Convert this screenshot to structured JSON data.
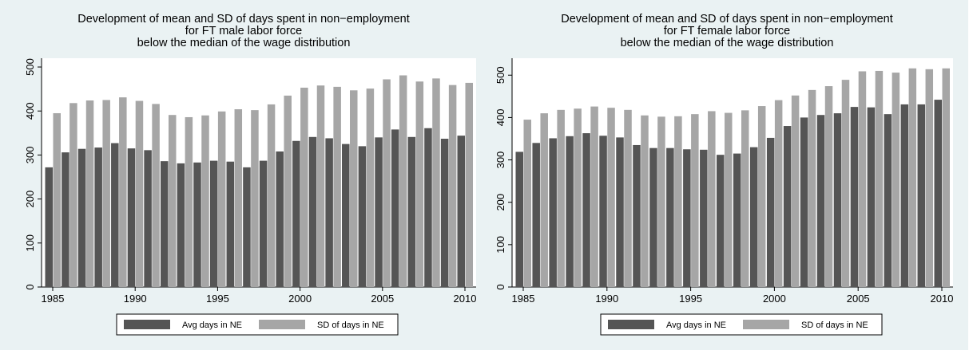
{
  "colors": {
    "page_bg": "#eaf2f3",
    "plot_bg": "#ffffff",
    "avg_bar": "#555555",
    "sd_bar": "#a6a6a6",
    "text": "#000000"
  },
  "chart_data": [
    {
      "type": "bar",
      "title": [
        "Development of mean and SD of days spent in non−employment",
        "for FT male labor force",
        "below the median of the wage distribution"
      ],
      "x": [
        1985,
        1986,
        1987,
        1988,
        1989,
        1990,
        1991,
        1992,
        1993,
        1994,
        1995,
        1996,
        1997,
        1998,
        1999,
        2000,
        2001,
        2002,
        2003,
        2004,
        2005,
        2006,
        2007,
        2008,
        2009,
        2010
      ],
      "xticks": [
        "1985",
        "1990",
        "1995",
        "2000",
        "2005",
        "2010"
      ],
      "yticks": [
        "0",
        "100",
        "200",
        "300",
        "400",
        "500"
      ],
      "ylim": [
        0,
        520
      ],
      "grid": false,
      "legend_position": "bottom",
      "series": [
        {
          "name": "Avg days in NE",
          "values": [
            272,
            306,
            314,
            317,
            327,
            315,
            311,
            286,
            281,
            283,
            287,
            285,
            272,
            287,
            308,
            332,
            341,
            338,
            325,
            320,
            340,
            358,
            341,
            361,
            337,
            344
          ]
        },
        {
          "name": "SD of days in NE",
          "values": [
            395,
            418,
            424,
            425,
            431,
            423,
            416,
            391,
            386,
            390,
            399,
            404,
            402,
            415,
            435,
            453,
            458,
            455,
            447,
            451,
            472,
            481,
            467,
            474,
            459,
            464
          ]
        }
      ]
    },
    {
      "type": "bar",
      "title": [
        "Development of mean and SD of days spent in non−employment",
        "for FT female labor force",
        "below the median of the wage distribution"
      ],
      "x": [
        1985,
        1986,
        1987,
        1988,
        1989,
        1990,
        1991,
        1992,
        1993,
        1994,
        1995,
        1996,
        1997,
        1998,
        1999,
        2000,
        2001,
        2002,
        2003,
        2004,
        2005,
        2006,
        2007,
        2008,
        2009,
        2010
      ],
      "xticks": [
        "1985",
        "1990",
        "1995",
        "2000",
        "2005",
        "2010"
      ],
      "yticks": [
        "0",
        "100",
        "200",
        "300",
        "400",
        "500"
      ],
      "ylim": [
        0,
        540
      ],
      "grid": false,
      "legend_position": "bottom",
      "series": [
        {
          "name": "Avg days in NE",
          "values": [
            319,
            340,
            351,
            356,
            363,
            357,
            353,
            335,
            328,
            328,
            325,
            324,
            312,
            315,
            330,
            352,
            380,
            400,
            406,
            410,
            425,
            424,
            408,
            431,
            431,
            442
          ]
        },
        {
          "name": "SD of days in NE",
          "values": [
            395,
            410,
            418,
            421,
            426,
            423,
            418,
            405,
            402,
            403,
            408,
            415,
            411,
            417,
            427,
            441,
            452,
            465,
            474,
            489,
            509,
            510,
            506,
            516,
            514,
            516
          ]
        }
      ]
    }
  ]
}
